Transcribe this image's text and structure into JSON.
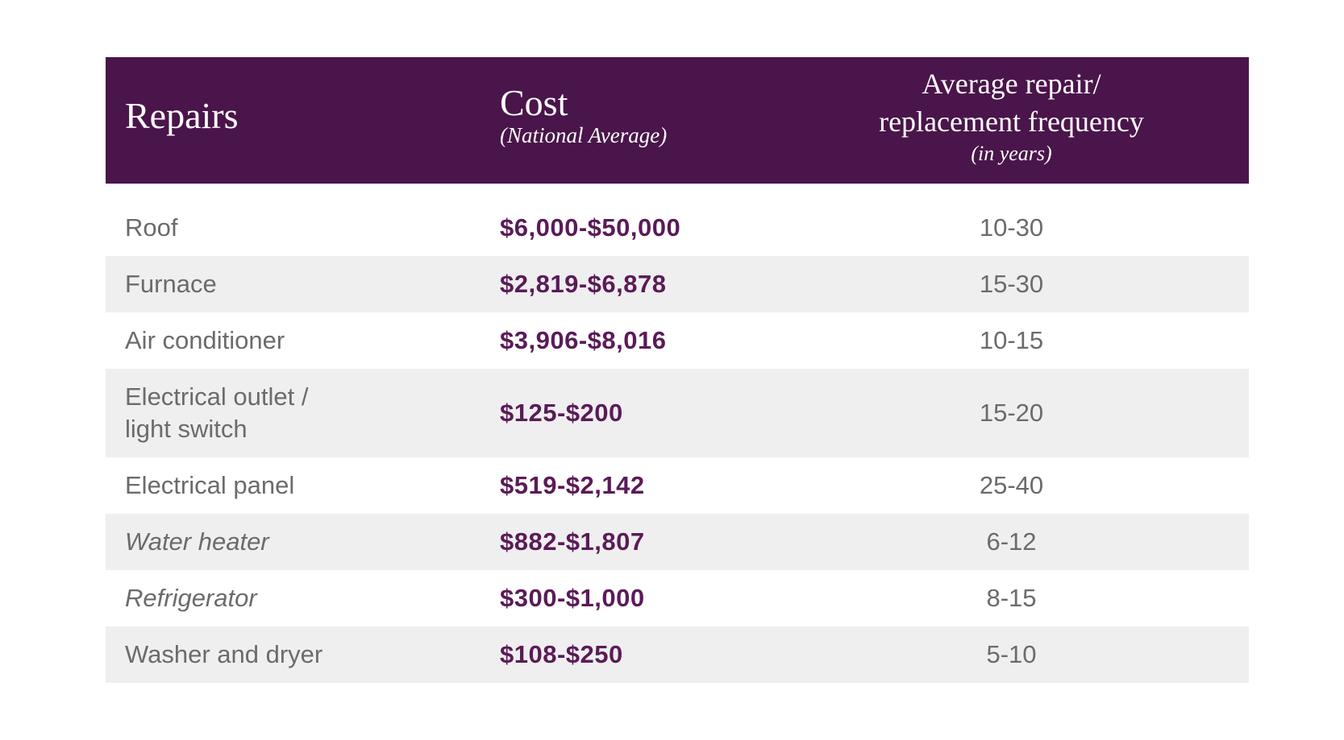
{
  "table": {
    "header": {
      "repairs_label": "Repairs",
      "cost_title": "Cost",
      "cost_subtitle": "(National Average)",
      "frequency_line1": "Average repair/",
      "frequency_line2": "replacement frequency",
      "frequency_subtitle": "(in years)"
    },
    "rows": [
      {
        "repair": "Roof",
        "cost": "$6,000-$50,000",
        "frequency": "10-30",
        "italic": false
      },
      {
        "repair": "Furnace",
        "cost": "$2,819-$6,878",
        "frequency": "15-30",
        "italic": false
      },
      {
        "repair": "Air conditioner",
        "cost": "$3,906-$8,016",
        "frequency": "10-15",
        "italic": false
      },
      {
        "repair": "Electrical outlet /\nlight switch",
        "cost": "$125-$200",
        "frequency": "15-20",
        "italic": false
      },
      {
        "repair": "Electrical panel",
        "cost": "$519-$2,142",
        "frequency": "25-40",
        "italic": false
      },
      {
        "repair": "Water heater",
        "cost": "$882-$1,807",
        "frequency": "6-12",
        "italic": true
      },
      {
        "repair": "Refrigerator",
        "cost": "$300-$1,000",
        "frequency": "8-15",
        "italic": true
      },
      {
        "repair": "Washer and dryer",
        "cost": "$108-$250",
        "frequency": "5-10",
        "italic": false
      }
    ],
    "colors": {
      "header_bg": "#4a154a",
      "cost_text": "#5b1a58",
      "body_text": "#6a6b6d",
      "row_alt_bg": "#efefef"
    }
  }
}
